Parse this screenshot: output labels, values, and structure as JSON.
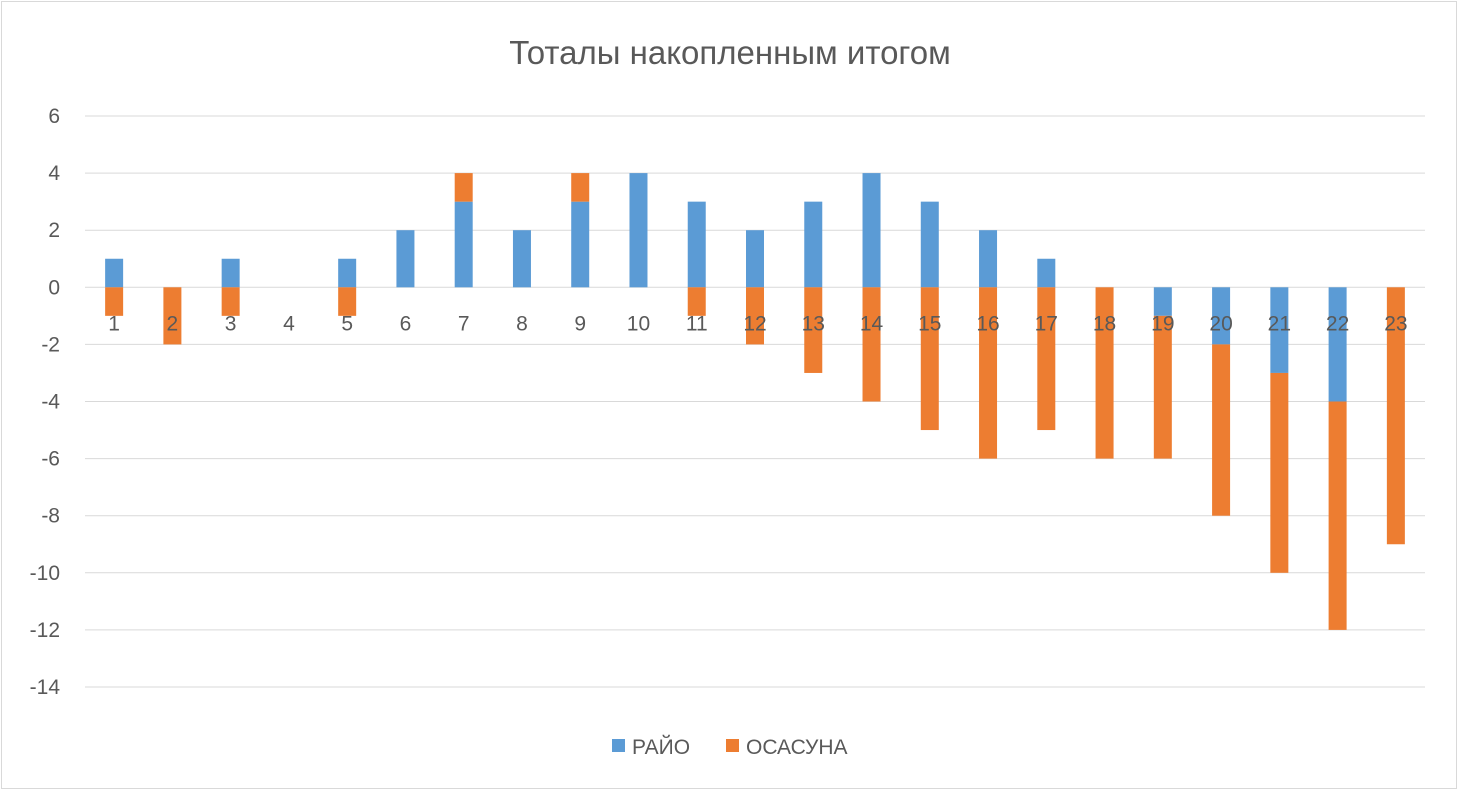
{
  "chart_data": {
    "type": "bar",
    "stacked": true,
    "title": "Тоталы накопленным итогом",
    "xlabel": "",
    "ylabel": "",
    "categories": [
      "1",
      "2",
      "3",
      "4",
      "5",
      "6",
      "7",
      "8",
      "9",
      "10",
      "11",
      "12",
      "13",
      "14",
      "15",
      "16",
      "17",
      "18",
      "19",
      "20",
      "21",
      "22",
      "23"
    ],
    "series": [
      {
        "name": "РАЙО",
        "color": "#5b9bd5",
        "values": [
          1,
          0,
          1,
          0,
          1,
          2,
          3,
          2,
          3,
          4,
          3,
          2,
          3,
          4,
          3,
          2,
          1,
          0,
          -1,
          -2,
          -3,
          -4,
          0
        ]
      },
      {
        "name": "ОСАСУНА",
        "color": "#ed7d31",
        "values": [
          -1,
          -2,
          -1,
          0,
          -1,
          0,
          1,
          0,
          1,
          0,
          -1,
          -2,
          -3,
          -4,
          -5,
          -6,
          -5,
          -6,
          -5,
          -6,
          -7,
          -8,
          -9
        ]
      }
    ],
    "ylim": [
      -14,
      6
    ],
    "yticks": [
      "6",
      "4",
      "2",
      "0",
      "-2",
      "-4",
      "-6",
      "-8",
      "-10",
      "-12",
      "-14"
    ],
    "grid": true,
    "legend_position": "bottom"
  }
}
